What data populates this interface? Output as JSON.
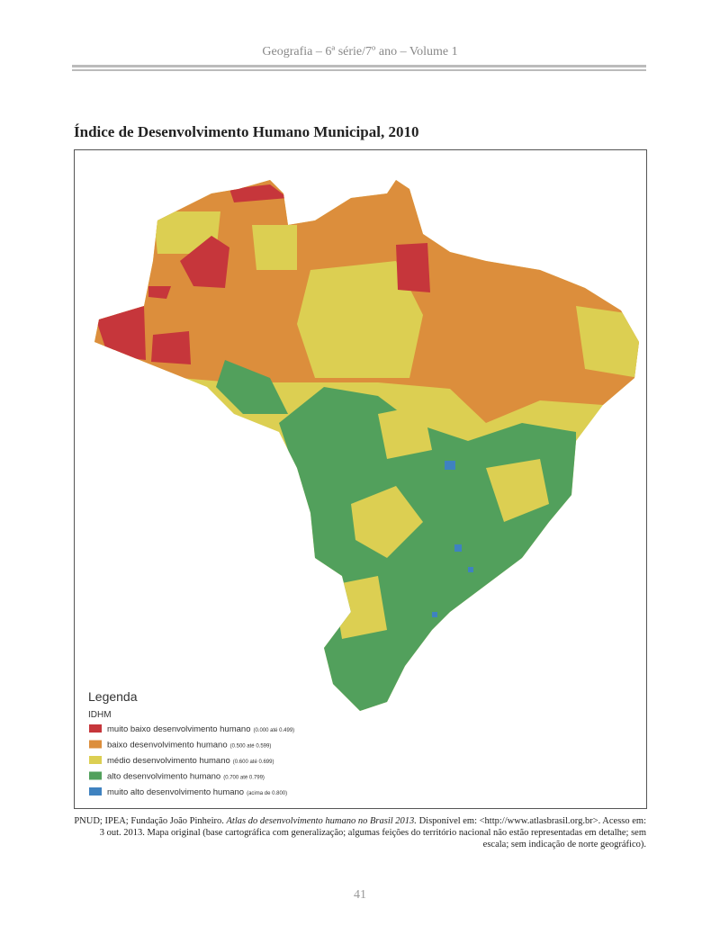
{
  "header": {
    "running_title": "Geografia – 6ª série/7º ano – Volume 1"
  },
  "title": "Índice de Desenvolvimento Humano Municipal, 2010",
  "legend": {
    "title": "Legenda",
    "subtitle": "IDHM",
    "items": [
      {
        "label": "muito baixo desenvolvimento humano",
        "range": "(0.000 até 0.499)",
        "color": "#c6363b"
      },
      {
        "label": "baixo desenvolvimento humano",
        "range": "(0.500 até 0.599)",
        "color": "#dc8e3c"
      },
      {
        "label": "médio desenvolvimento humano",
        "range": "(0.600 até 0.699)",
        "color": "#dccf52"
      },
      {
        "label": "alto desenvolvimento humano",
        "range": "(0.700 até 0.799)",
        "color": "#52a05c"
      },
      {
        "label": "muito alto desenvolvimento humano",
        "range": "(acima de 0.800)",
        "color": "#3f82c0"
      }
    ]
  },
  "source": {
    "text_before": "PNUD; IPEA; Fundação João Pinheiro. ",
    "italic": "Atlas do desenvolvimento humano no Brasil 2013.",
    "text_after": " Disponível em: <http://www.atlasbrasil.org.br>. Acesso em: 3 out. 2013. Mapa original (base cartográfica com generalização; algumas feições do território nacional não estão representadas em detalhe; sem escala; sem indicação de norte geográfico)."
  },
  "page_number": "41"
}
